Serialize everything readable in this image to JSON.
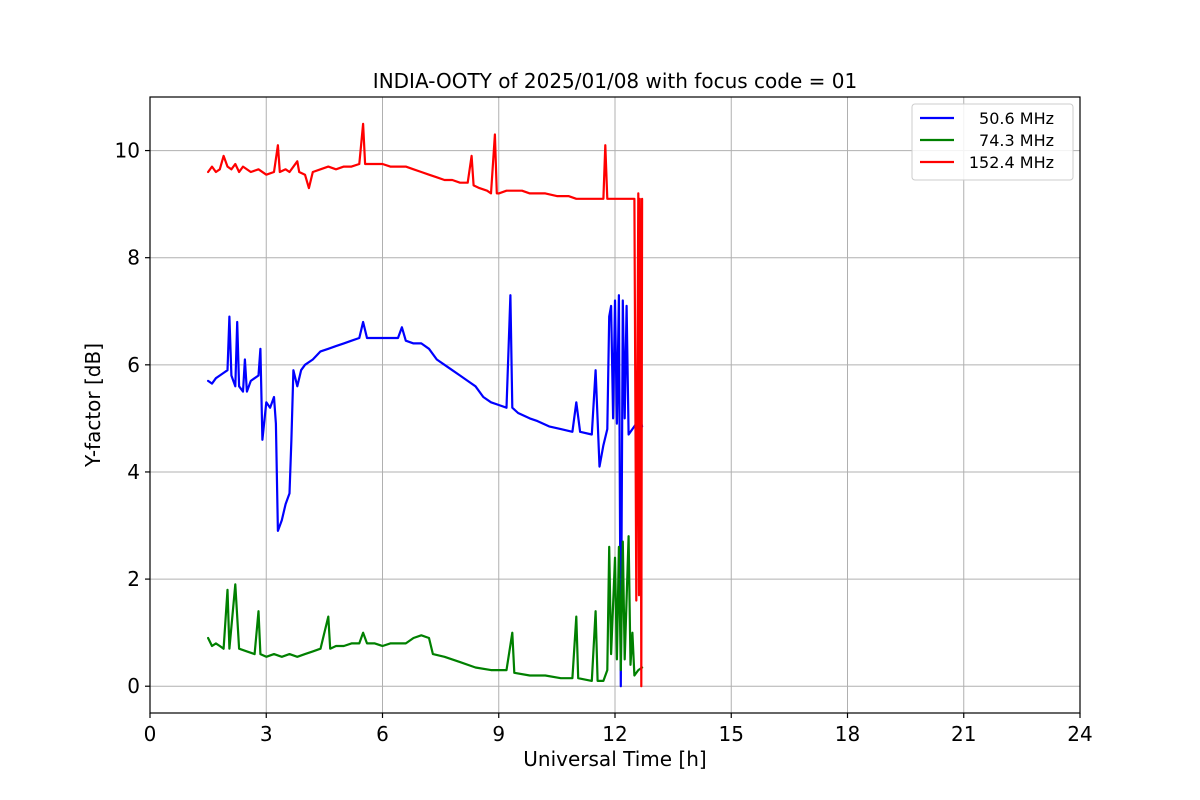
{
  "chart_data": {
    "type": "line",
    "title": "INDIA-OOTY of 2025/01/08 with focus code = 01",
    "xlabel": "Universal Time [h]",
    "ylabel": "Y-factor [dB]",
    "xlim": [
      0,
      24
    ],
    "ylim": [
      -0.5,
      11.0
    ],
    "xticks": [
      0,
      3,
      6,
      9,
      12,
      15,
      18,
      21,
      24
    ],
    "yticks": [
      0,
      2,
      4,
      6,
      8,
      10
    ],
    "grid": true,
    "legend_position": "top-right",
    "series": [
      {
        "name": "50.6 MHz",
        "color": "#0000ff",
        "points": [
          [
            1.5,
            5.7
          ],
          [
            1.6,
            5.65
          ],
          [
            1.7,
            5.75
          ],
          [
            1.8,
            5.8
          ],
          [
            1.9,
            5.85
          ],
          [
            2.0,
            5.9
          ],
          [
            2.05,
            6.9
          ],
          [
            2.1,
            5.8
          ],
          [
            2.2,
            5.6
          ],
          [
            2.25,
            6.8
          ],
          [
            2.3,
            5.6
          ],
          [
            2.4,
            5.5
          ],
          [
            2.45,
            6.1
          ],
          [
            2.5,
            5.5
          ],
          [
            2.6,
            5.7
          ],
          [
            2.7,
            5.75
          ],
          [
            2.8,
            5.8
          ],
          [
            2.85,
            6.3
          ],
          [
            2.9,
            4.6
          ],
          [
            3.0,
            5.3
          ],
          [
            3.1,
            5.2
          ],
          [
            3.2,
            5.4
          ],
          [
            3.25,
            4.9
          ],
          [
            3.3,
            2.9
          ],
          [
            3.4,
            3.1
          ],
          [
            3.5,
            3.4
          ],
          [
            3.6,
            3.6
          ],
          [
            3.65,
            4.6
          ],
          [
            3.7,
            5.9
          ],
          [
            3.8,
            5.6
          ],
          [
            3.9,
            5.9
          ],
          [
            4.0,
            6.0
          ],
          [
            4.2,
            6.1
          ],
          [
            4.4,
            6.25
          ],
          [
            4.6,
            6.3
          ],
          [
            4.8,
            6.35
          ],
          [
            5.0,
            6.4
          ],
          [
            5.2,
            6.45
          ],
          [
            5.4,
            6.5
          ],
          [
            5.5,
            6.8
          ],
          [
            5.6,
            6.5
          ],
          [
            5.8,
            6.5
          ],
          [
            6.0,
            6.5
          ],
          [
            6.2,
            6.5
          ],
          [
            6.4,
            6.5
          ],
          [
            6.5,
            6.7
          ],
          [
            6.6,
            6.45
          ],
          [
            6.8,
            6.4
          ],
          [
            7.0,
            6.4
          ],
          [
            7.2,
            6.3
          ],
          [
            7.4,
            6.1
          ],
          [
            7.6,
            6.0
          ],
          [
            7.8,
            5.9
          ],
          [
            8.0,
            5.8
          ],
          [
            8.2,
            5.7
          ],
          [
            8.4,
            5.6
          ],
          [
            8.6,
            5.4
          ],
          [
            8.8,
            5.3
          ],
          [
            9.0,
            5.25
          ],
          [
            9.2,
            5.2
          ],
          [
            9.3,
            7.3
          ],
          [
            9.35,
            5.2
          ],
          [
            9.5,
            5.1
          ],
          [
            9.8,
            5.0
          ],
          [
            10.0,
            4.95
          ],
          [
            10.3,
            4.85
          ],
          [
            10.6,
            4.8
          ],
          [
            10.9,
            4.75
          ],
          [
            11.0,
            5.3
          ],
          [
            11.1,
            4.75
          ],
          [
            11.4,
            4.7
          ],
          [
            11.5,
            5.9
          ],
          [
            11.6,
            4.1
          ],
          [
            11.7,
            4.5
          ],
          [
            11.8,
            4.8
          ],
          [
            11.85,
            6.9
          ],
          [
            11.9,
            7.1
          ],
          [
            11.95,
            5.0
          ],
          [
            12.0,
            7.2
          ],
          [
            12.05,
            4.9
          ],
          [
            12.1,
            7.3
          ],
          [
            12.15,
            0.0
          ],
          [
            12.2,
            7.2
          ],
          [
            12.25,
            5.0
          ],
          [
            12.3,
            7.1
          ],
          [
            12.35,
            4.7
          ],
          [
            12.45,
            4.8
          ],
          [
            12.55,
            4.9
          ],
          [
            12.6,
            5.1
          ],
          [
            12.7,
            4.85
          ]
        ]
      },
      {
        "name": "74.3 MHz",
        "color": "#008000",
        "points": [
          [
            1.5,
            0.9
          ],
          [
            1.6,
            0.75
          ],
          [
            1.7,
            0.8
          ],
          [
            1.8,
            0.75
          ],
          [
            1.9,
            0.7
          ],
          [
            2.0,
            1.8
          ],
          [
            2.05,
            0.7
          ],
          [
            2.2,
            1.9
          ],
          [
            2.3,
            0.7
          ],
          [
            2.5,
            0.65
          ],
          [
            2.7,
            0.6
          ],
          [
            2.8,
            1.4
          ],
          [
            2.85,
            0.6
          ],
          [
            3.0,
            0.55
          ],
          [
            3.2,
            0.6
          ],
          [
            3.4,
            0.55
          ],
          [
            3.6,
            0.6
          ],
          [
            3.8,
            0.55
          ],
          [
            4.0,
            0.6
          ],
          [
            4.2,
            0.65
          ],
          [
            4.4,
            0.7
          ],
          [
            4.6,
            1.3
          ],
          [
            4.65,
            0.7
          ],
          [
            4.8,
            0.75
          ],
          [
            5.0,
            0.75
          ],
          [
            5.2,
            0.8
          ],
          [
            5.4,
            0.8
          ],
          [
            5.5,
            1.0
          ],
          [
            5.6,
            0.8
          ],
          [
            5.8,
            0.8
          ],
          [
            6.0,
            0.75
          ],
          [
            6.2,
            0.8
          ],
          [
            6.4,
            0.8
          ],
          [
            6.6,
            0.8
          ],
          [
            6.8,
            0.9
          ],
          [
            7.0,
            0.95
          ],
          [
            7.2,
            0.9
          ],
          [
            7.3,
            0.6
          ],
          [
            7.6,
            0.55
          ],
          [
            8.0,
            0.45
          ],
          [
            8.4,
            0.35
          ],
          [
            8.8,
            0.3
          ],
          [
            9.0,
            0.3
          ],
          [
            9.2,
            0.3
          ],
          [
            9.35,
            1.0
          ],
          [
            9.4,
            0.25
          ],
          [
            9.8,
            0.2
          ],
          [
            10.2,
            0.2
          ],
          [
            10.6,
            0.15
          ],
          [
            10.9,
            0.15
          ],
          [
            11.0,
            1.3
          ],
          [
            11.05,
            0.15
          ],
          [
            11.4,
            0.1
          ],
          [
            11.5,
            1.4
          ],
          [
            11.55,
            0.1
          ],
          [
            11.7,
            0.1
          ],
          [
            11.8,
            0.3
          ],
          [
            11.85,
            2.6
          ],
          [
            11.9,
            0.6
          ],
          [
            12.0,
            2.4
          ],
          [
            12.05,
            0.5
          ],
          [
            12.1,
            2.6
          ],
          [
            12.15,
            0.3
          ],
          [
            12.2,
            2.7
          ],
          [
            12.25,
            0.5
          ],
          [
            12.35,
            2.8
          ],
          [
            12.4,
            0.4
          ],
          [
            12.45,
            1.0
          ],
          [
            12.5,
            0.2
          ],
          [
            12.6,
            0.3
          ],
          [
            12.7,
            0.35
          ]
        ]
      },
      {
        "name": "152.4 MHz",
        "color": "#ff0000",
        "points": [
          [
            1.5,
            9.6
          ],
          [
            1.6,
            9.7
          ],
          [
            1.7,
            9.6
          ],
          [
            1.8,
            9.65
          ],
          [
            1.9,
            9.9
          ],
          [
            2.0,
            9.7
          ],
          [
            2.1,
            9.65
          ],
          [
            2.2,
            9.75
          ],
          [
            2.3,
            9.6
          ],
          [
            2.4,
            9.7
          ],
          [
            2.6,
            9.6
          ],
          [
            2.8,
            9.65
          ],
          [
            3.0,
            9.55
          ],
          [
            3.2,
            9.6
          ],
          [
            3.3,
            10.1
          ],
          [
            3.35,
            9.6
          ],
          [
            3.5,
            9.65
          ],
          [
            3.6,
            9.6
          ],
          [
            3.8,
            9.8
          ],
          [
            3.85,
            9.6
          ],
          [
            4.0,
            9.55
          ],
          [
            4.1,
            9.3
          ],
          [
            4.2,
            9.6
          ],
          [
            4.4,
            9.65
          ],
          [
            4.6,
            9.7
          ],
          [
            4.8,
            9.65
          ],
          [
            5.0,
            9.7
          ],
          [
            5.2,
            9.7
          ],
          [
            5.4,
            9.75
          ],
          [
            5.5,
            10.5
          ],
          [
            5.55,
            9.75
          ],
          [
            5.8,
            9.75
          ],
          [
            6.0,
            9.75
          ],
          [
            6.2,
            9.7
          ],
          [
            6.4,
            9.7
          ],
          [
            6.6,
            9.7
          ],
          [
            6.8,
            9.65
          ],
          [
            7.0,
            9.6
          ],
          [
            7.2,
            9.55
          ],
          [
            7.4,
            9.5
          ],
          [
            7.6,
            9.45
          ],
          [
            7.8,
            9.45
          ],
          [
            8.0,
            9.4
          ],
          [
            8.2,
            9.4
          ],
          [
            8.3,
            9.9
          ],
          [
            8.35,
            9.35
          ],
          [
            8.5,
            9.3
          ],
          [
            8.7,
            9.25
          ],
          [
            8.8,
            9.2
          ],
          [
            8.9,
            10.3
          ],
          [
            8.95,
            9.2
          ],
          [
            9.0,
            9.2
          ],
          [
            9.2,
            9.25
          ],
          [
            9.4,
            9.25
          ],
          [
            9.6,
            9.25
          ],
          [
            9.8,
            9.2
          ],
          [
            10.0,
            9.2
          ],
          [
            10.2,
            9.2
          ],
          [
            10.5,
            9.15
          ],
          [
            10.8,
            9.15
          ],
          [
            11.0,
            9.1
          ],
          [
            11.3,
            9.1
          ],
          [
            11.5,
            9.1
          ],
          [
            11.7,
            9.1
          ],
          [
            11.75,
            10.1
          ],
          [
            11.8,
            9.1
          ],
          [
            12.0,
            9.1
          ],
          [
            12.2,
            9.1
          ],
          [
            12.4,
            9.1
          ],
          [
            12.5,
            9.1
          ],
          [
            12.55,
            1.6
          ],
          [
            12.6,
            9.2
          ],
          [
            12.62,
            1.7
          ],
          [
            12.64,
            9.1
          ],
          [
            12.66,
            7.2
          ],
          [
            12.68,
            0.0
          ],
          [
            12.7,
            9.1
          ]
        ]
      }
    ]
  }
}
